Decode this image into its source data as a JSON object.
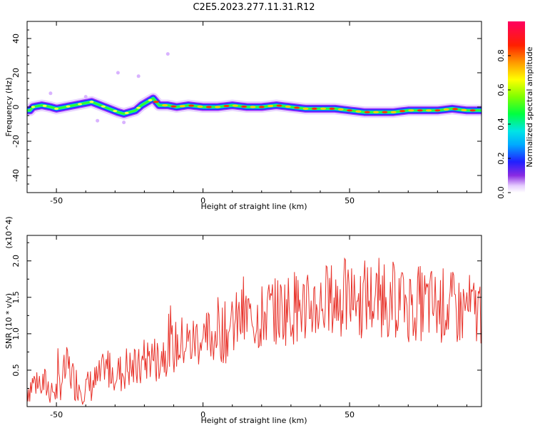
{
  "title": "C2E5.2023.277.11.31.R12",
  "chart_data": [
    {
      "type": "heatmap",
      "xlabel": "Height of straight line (km)",
      "ylabel": "Frequency (Hz)",
      "xlim": [
        -60,
        95
      ],
      "ylim": [
        -50,
        50
      ],
      "x_ticks": [
        -50,
        0,
        50
      ],
      "y_ticks": [
        -40,
        -20,
        0,
        20,
        40
      ],
      "colorbar": {
        "label": "Normalized spectral amplitude",
        "range": [
          0,
          1
        ],
        "ticks": [
          "0.0",
          "0.2",
          "0.4",
          "0.6",
          "0.8"
        ]
      },
      "ridge": {
        "x": [
          -58,
          -55,
          -52,
          -50,
          -47,
          -44,
          -41,
          -38,
          -35,
          -32,
          -29,
          -27,
          -25,
          -23,
          -21,
          -19,
          -17,
          -15,
          -12,
          -9,
          -5,
          0,
          5,
          10,
          15,
          20,
          25,
          30,
          35,
          40,
          45,
          50,
          55,
          60,
          65,
          70,
          75,
          80,
          85,
          90,
          93
        ],
        "y": [
          0,
          1,
          0,
          -1,
          0,
          1,
          2,
          3,
          1,
          -1,
          -3,
          -4,
          -3,
          -2,
          1,
          3,
          5,
          1,
          1,
          0,
          1,
          0,
          0,
          1,
          0,
          0,
          1,
          0,
          -1,
          -1,
          -1,
          -2,
          -3,
          -3,
          -3,
          -2,
          -2,
          -2,
          -1,
          -2,
          -2
        ]
      }
    },
    {
      "type": "line",
      "xlabel": "Height of straight line (km)",
      "ylabel": "SNR (10 * v/v)",
      "y_multiplier": "(x10^4)",
      "xlim": [
        -60,
        95
      ],
      "ylim": [
        0,
        2.35
      ],
      "x_ticks": [
        -50,
        0,
        50
      ],
      "y_ticks": [
        0.5,
        1.0,
        1.5,
        2.0
      ],
      "color": "#e8332b",
      "series": [
        {
          "name": "",
          "x": [
            -60,
            -57,
            -54,
            -52,
            -50,
            -48,
            -46,
            -44,
            -42,
            -40,
            -38,
            -36,
            -34,
            -32,
            -30,
            -28,
            -26,
            -24,
            -22,
            -20,
            -18,
            -16,
            -14,
            -12,
            -10,
            -8,
            -6,
            -4,
            -2,
            0,
            2,
            4,
            5,
            6,
            8,
            10,
            12,
            14,
            16,
            18,
            20,
            22,
            25,
            28,
            30,
            32,
            35,
            38,
            40,
            42,
            45,
            48,
            50,
            52,
            53,
            55,
            57,
            59,
            60,
            62,
            65,
            68,
            70,
            72,
            75,
            78,
            80,
            82,
            85,
            88,
            90,
            92,
            95
          ],
          "y": [
            0.25,
            0.35,
            0.3,
            0.25,
            0.2,
            0.4,
            0.55,
            0.35,
            0.3,
            0.25,
            0.3,
            0.35,
            0.45,
            0.55,
            0.5,
            0.45,
            0.55,
            0.5,
            0.5,
            0.6,
            0.7,
            0.65,
            0.75,
            0.8,
            0.8,
            0.85,
            0.9,
            0.85,
            0.95,
            0.9,
            0.95,
            1.0,
            1.1,
            1.05,
            1.0,
            1.1,
            1.15,
            1.2,
            1.25,
            1.2,
            1.25,
            1.3,
            1.3,
            1.35,
            1.35,
            1.4,
            1.35,
            1.4,
            1.4,
            1.45,
            1.45,
            1.5,
            1.45,
            1.55,
            1.4,
            1.5,
            1.5,
            1.45,
            1.5,
            1.5,
            1.45,
            1.5,
            1.4,
            1.45,
            1.4,
            1.4,
            1.35,
            1.4,
            1.35,
            1.3,
            1.35,
            1.3,
            1.35
          ]
        }
      ]
    }
  ]
}
